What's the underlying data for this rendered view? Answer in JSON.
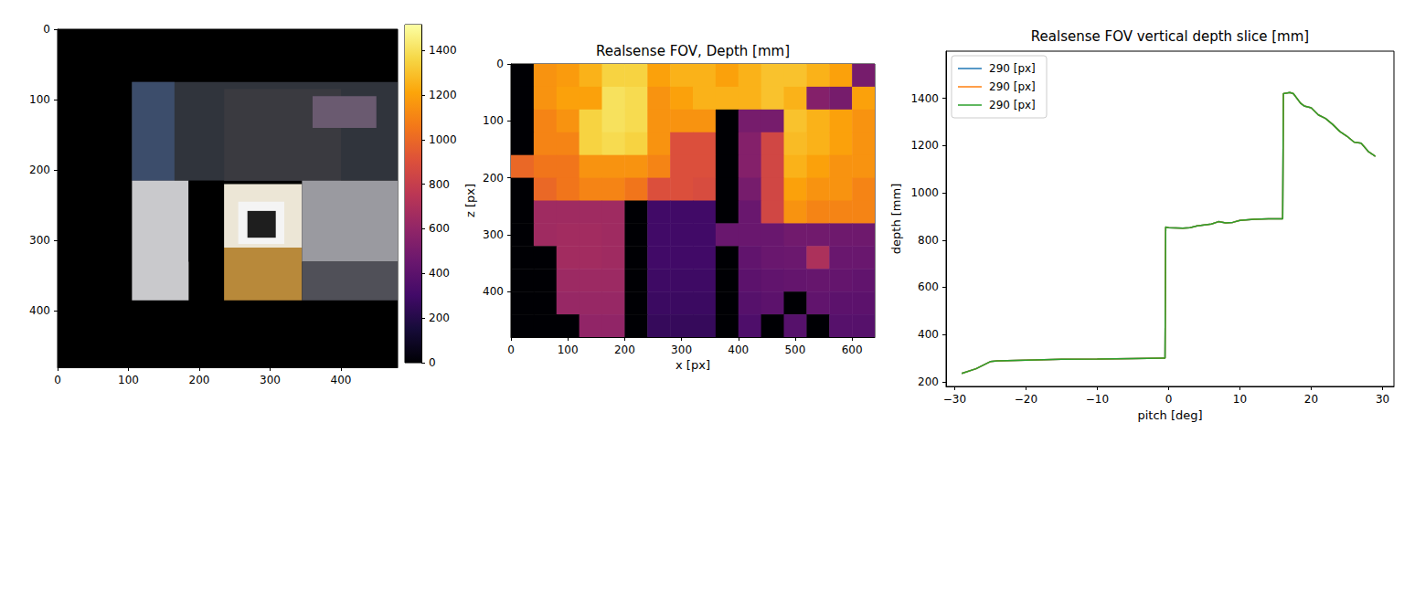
{
  "chart_data": [
    {
      "type": "image",
      "xlim": [
        0,
        480
      ],
      "ylim": [
        480,
        0
      ],
      "xticks": [
        0,
        100,
        200,
        300,
        400
      ],
      "yticks": [
        0,
        100,
        200,
        300,
        400
      ],
      "grid": false,
      "regions": [
        {
          "x": [
            0,
            480
          ],
          "y": [
            0,
            480
          ],
          "color": "#000000"
        },
        {
          "x": [
            105,
            480
          ],
          "y": [
            75,
            215
          ],
          "color": "#30343c"
        },
        {
          "x": [
            105,
            165
          ],
          "y": [
            75,
            215
          ],
          "color": "#3c4d6b"
        },
        {
          "x": [
            235,
            400
          ],
          "y": [
            85,
            215
          ],
          "color": "#3a3a40"
        },
        {
          "x": [
            360,
            450
          ],
          "y": [
            95,
            140
          ],
          "color": "#6a5a70"
        },
        {
          "x": [
            105,
            185
          ],
          "y": [
            215,
            385
          ],
          "color": "#c9c9cc"
        },
        {
          "x": [
            185,
            235
          ],
          "y": [
            215,
            330
          ],
          "color": "#000000"
        },
        {
          "x": [
            235,
            345
          ],
          "y": [
            220,
            310
          ],
          "color": "#ece6d6"
        },
        {
          "x": [
            235,
            345
          ],
          "y": [
            310,
            385
          ],
          "color": "#b8893a"
        },
        {
          "x": [
            255,
            320
          ],
          "y": [
            245,
            305
          ],
          "color": "#f4f4f4"
        },
        {
          "x": [
            268,
            308
          ],
          "y": [
            258,
            296
          ],
          "color": "#1e1e1e"
        },
        {
          "x": [
            345,
            480
          ],
          "y": [
            215,
            330
          ],
          "color": "#9a9aa0"
        },
        {
          "x": [
            345,
            480
          ],
          "y": [
            330,
            385
          ],
          "color": "#505058"
        }
      ]
    },
    {
      "type": "heatmap",
      "title": "Realsense FOV, Depth [mm]",
      "x_label": "x [px]",
      "y_label": "z [px]",
      "xlim": [
        0,
        640
      ],
      "ylim": [
        480,
        0
      ],
      "xticks": [
        0,
        100,
        200,
        300,
        400,
        500,
        600
      ],
      "yticks": [
        0,
        100,
        200,
        300,
        400
      ],
      "grid": false,
      "cell_size": 40,
      "cells": [
        [
          0,
          1150,
          1180,
          1250,
          1350,
          1350,
          1200,
          1250,
          1250,
          1200,
          1250,
          1300,
          1300,
          1250,
          1200,
          500
        ],
        [
          0,
          1150,
          1200,
          1200,
          1400,
          1380,
          1150,
          1200,
          1250,
          1250,
          1250,
          1300,
          1250,
          550,
          500,
          1200
        ],
        [
          0,
          1100,
          1150,
          1350,
          1400,
          1380,
          1150,
          1150,
          1150,
          0,
          500,
          500,
          1300,
          1250,
          1200,
          1150
        ],
        [
          0,
          1100,
          1100,
          1350,
          1380,
          1350,
          1150,
          900,
          900,
          0,
          550,
          850,
          1280,
          1250,
          1200,
          1150
        ],
        [
          1000,
          1050,
          1050,
          1150,
          1150,
          1150,
          1100,
          900,
          900,
          0,
          550,
          850,
          1250,
          1200,
          1150,
          1150
        ],
        [
          0,
          1000,
          1050,
          1100,
          1100,
          1050,
          900,
          900,
          880,
          0,
          500,
          850,
          1200,
          1150,
          1150,
          1100
        ],
        [
          0,
          650,
          650,
          650,
          650,
          0,
          300,
          300,
          300,
          0,
          450,
          850,
          1150,
          1100,
          1100,
          1100
        ],
        [
          0,
          650,
          660,
          660,
          650,
          0,
          300,
          300,
          300,
          450,
          450,
          450,
          480,
          480,
          470,
          470
        ],
        [
          0,
          0,
          660,
          660,
          650,
          0,
          300,
          300,
          300,
          0,
          420,
          450,
          460,
          700,
          450,
          450
        ],
        [
          0,
          0,
          640,
          640,
          640,
          0,
          290,
          290,
          290,
          0,
          400,
          420,
          430,
          440,
          430,
          420
        ],
        [
          0,
          0,
          620,
          620,
          620,
          0,
          280,
          280,
          280,
          0,
          380,
          400,
          0,
          420,
          400,
          400
        ],
        [
          0,
          0,
          0,
          600,
          600,
          0,
          260,
          260,
          260,
          0,
          350,
          0,
          380,
          0,
          380,
          380
        ]
      ],
      "colorbar": {
        "range": [
          0,
          1515
        ],
        "ticks": [
          0,
          200,
          400,
          600,
          800,
          1000,
          1200,
          1400
        ]
      }
    },
    {
      "type": "line",
      "title": "Realsense FOV vertical depth slice [mm]",
      "x_label": "pitch [deg]",
      "y_label": "depth [mm]",
      "xlim": [
        -31.2,
        31.6
      ],
      "ylim": [
        180,
        1600
      ],
      "xticks": [
        {
          "value": -30,
          "label": "−30"
        },
        {
          "value": -20,
          "label": "−20"
        },
        {
          "value": -10,
          "label": "−10"
        },
        0,
        10,
        20,
        30
      ],
      "yticks": [
        200,
        400,
        600,
        800,
        1000,
        1200,
        1400
      ],
      "grid": false,
      "legend": "upper left",
      "x": [
        -29,
        -27,
        -25,
        -24,
        -20,
        -15,
        -10,
        -5,
        -0.5,
        -0.4,
        0,
        2,
        3,
        4,
        6,
        7,
        8,
        9,
        10,
        12,
        14,
        16,
        16.1,
        17,
        17.5,
        18.5,
        19,
        20,
        21,
        22,
        23,
        24,
        25,
        26,
        27,
        28,
        29
      ],
      "series": [
        {
          "name": "290 [px]",
          "color": "#1f77b4",
          "values": [
            235,
            255,
            285,
            288,
            291,
            295,
            296,
            298,
            300,
            855,
            852,
            850,
            852,
            860,
            868,
            878,
            873,
            875,
            883,
            888,
            890,
            890,
            1420,
            1425,
            1420,
            1380,
            1368,
            1360,
            1330,
            1315,
            1290,
            1260,
            1240,
            1215,
            1210,
            1175,
            1155
          ]
        },
        {
          "name": "290 [px]",
          "color": "#ff7f0e",
          "values": [
            235,
            255,
            285,
            288,
            291,
            295,
            296,
            298,
            300,
            855,
            852,
            850,
            852,
            860,
            868,
            878,
            873,
            875,
            883,
            888,
            890,
            890,
            1420,
            1425,
            1420,
            1380,
            1368,
            1360,
            1330,
            1315,
            1290,
            1260,
            1240,
            1215,
            1210,
            1175,
            1155
          ]
        },
        {
          "name": "290 [px]",
          "color": "#2ca02c",
          "values": [
            235,
            255,
            285,
            288,
            291,
            295,
            296,
            298,
            300,
            855,
            852,
            850,
            852,
            860,
            868,
            878,
            873,
            875,
            883,
            888,
            890,
            890,
            1420,
            1425,
            1420,
            1380,
            1368,
            1360,
            1330,
            1315,
            1290,
            1260,
            1240,
            1215,
            1210,
            1175,
            1155
          ]
        }
      ]
    }
  ]
}
